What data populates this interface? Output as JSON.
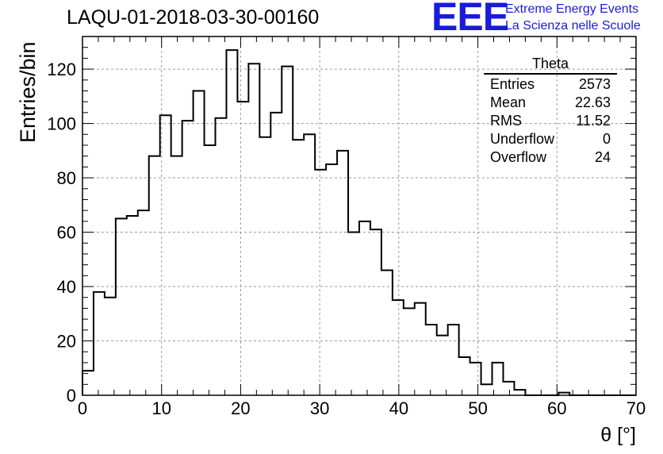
{
  "chart_data": {
    "type": "bar",
    "title": "LAQU-01-2018-03-30-00160",
    "xlabel": "θ [°]",
    "ylabel": "Entries/bin",
    "xlim": [
      0,
      70
    ],
    "ylim": [
      0,
      132
    ],
    "grid": true,
    "bin_width": 1.4,
    "x_ticks": [
      0,
      10,
      20,
      30,
      40,
      50,
      60,
      70
    ],
    "y_ticks": [
      0,
      20,
      40,
      60,
      80,
      100,
      120
    ],
    "values": [
      9,
      38,
      36,
      65,
      66,
      68,
      88,
      103,
      88,
      101,
      112,
      92,
      102,
      127,
      108,
      122,
      95,
      104,
      121,
      94,
      96,
      83,
      85,
      90,
      60,
      64,
      61,
      46,
      35,
      32,
      34,
      26,
      22,
      26,
      14,
      12,
      4,
      12,
      5,
      2,
      0,
      0,
      0,
      1,
      0,
      0,
      0,
      0,
      0,
      0
    ],
    "stats_box": {
      "title": "Theta",
      "rows": [
        {
          "label": "Entries",
          "value": "2573"
        },
        {
          "label": "Mean",
          "value": "22.63"
        },
        {
          "label": "RMS",
          "value": "11.52"
        },
        {
          "label": "Underflow",
          "value": "0"
        },
        {
          "label": "Overflow",
          "value": "24"
        }
      ]
    }
  },
  "logo": {
    "mark": "EEE",
    "line1": "Extreme Energy Events",
    "line2": "La Scienza nelle Scuole"
  },
  "colors": {
    "logo": "#1a1adc",
    "grid": "#9a9a9a",
    "line": "#000000"
  }
}
